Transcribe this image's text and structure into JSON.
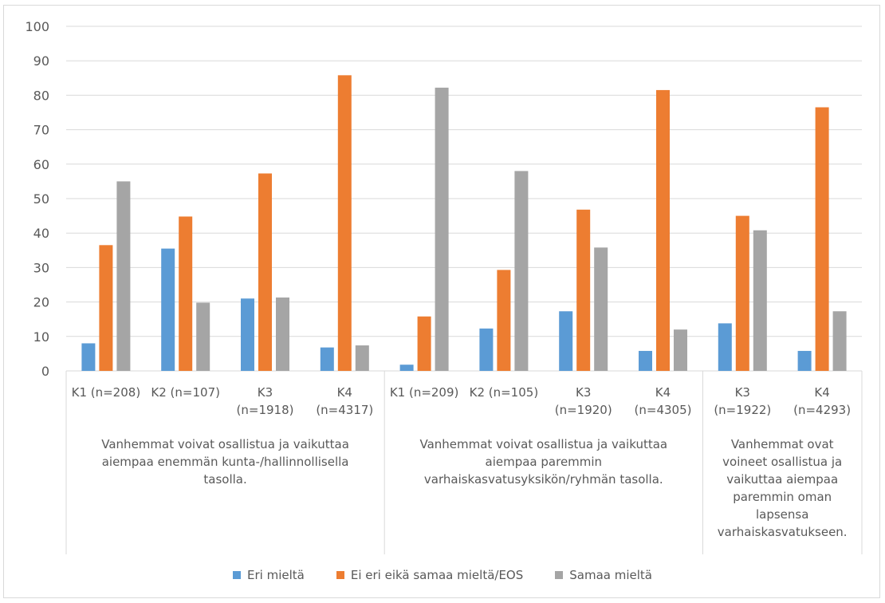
{
  "chart_data": {
    "type": "bar",
    "title": "",
    "xlabel": "",
    "ylabel": "",
    "ylim": [
      0,
      100
    ],
    "yticks": [
      0,
      10,
      20,
      30,
      40,
      50,
      60,
      70,
      80,
      90,
      100
    ],
    "grid": true,
    "legend_position": "bottom",
    "categories": [
      [
        "K1 (n=208)"
      ],
      [
        "K2 (n=107)"
      ],
      [
        "K3",
        "(n=1918)"
      ],
      [
        "K4",
        "(n=4317)"
      ],
      [
        "K1 (n=209)"
      ],
      [
        "K2 (n=105)"
      ],
      [
        "K3",
        "(n=1920)"
      ],
      [
        "K4",
        "(n=4305)"
      ],
      [
        "K3",
        "(n=1922)"
      ],
      [
        "K4",
        "(n=4293)"
      ]
    ],
    "groups": [
      {
        "lines": [
          "Vanhemmat voivat osallistua ja vaikuttaa",
          "aiempaa enemmän kunta-/hallinnollisella",
          "tasolla."
        ],
        "count": 4
      },
      {
        "lines": [
          "Vanhemmat voivat osallistua ja vaikuttaa",
          "aiempaa paremmin",
          "varhaiskasvatusyksikön/ryhmän tasolla."
        ],
        "count": 4
      },
      {
        "lines": [
          "Vanhemmat ovat",
          "voineet osallistua ja",
          "vaikuttaa aiempaa",
          "paremmin oman",
          "lapsensa",
          "varhaiskasvatukseen."
        ],
        "count": 2
      }
    ],
    "series": [
      {
        "name": "Eri mieltä",
        "color": "#5b9bd5",
        "values": [
          8,
          35.5,
          21,
          6.8,
          1.8,
          12.3,
          17.3,
          5.8,
          13.8,
          5.8
        ]
      },
      {
        "name": "Ei eri eikä samaa mieltä/EOS",
        "color": "#ed7d31",
        "values": [
          36.5,
          44.8,
          57.3,
          85.8,
          15.8,
          29.3,
          46.8,
          81.5,
          45,
          76.5
        ]
      },
      {
        "name": "Samaa mieltä",
        "color": "#a5a5a5",
        "values": [
          55,
          19.8,
          21.3,
          7.4,
          82.2,
          58,
          35.8,
          12,
          40.8,
          17.3
        ]
      }
    ]
  }
}
